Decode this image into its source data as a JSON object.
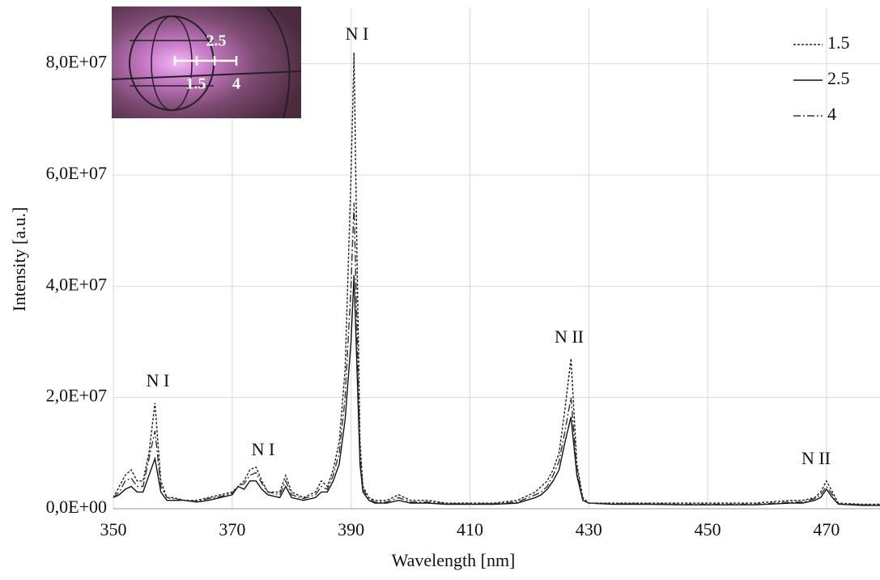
{
  "chart_data": {
    "type": "line",
    "x_label": "Wavelength [nm]",
    "y_label": "Intensity [a.u.]",
    "x": [
      350,
      351,
      352,
      353,
      354,
      355,
      356,
      357,
      358,
      359,
      360,
      362,
      364,
      366,
      368,
      370,
      371,
      372,
      373,
      374,
      375,
      376,
      378,
      379,
      380,
      382,
      384,
      385,
      386,
      387,
      388,
      389,
      390,
      390.5,
      391,
      391.5,
      392,
      393,
      394,
      396,
      398,
      400,
      403,
      406,
      410,
      414,
      418,
      421,
      422,
      423,
      424,
      425,
      426,
      427,
      428,
      429,
      430,
      434,
      440,
      446,
      452,
      458,
      464,
      466,
      468,
      469,
      470,
      471,
      472,
      476,
      479
    ],
    "series": [
      {
        "name": "1.5",
        "color": "#222222",
        "dash": "dotted",
        "values": [
          2000000.0,
          4000000.0,
          6000000.0,
          7000000.0,
          5000000.0,
          5000000.0,
          10000000.0,
          19000000.0,
          5000000.0,
          2000000.0,
          2000000.0,
          1500000.0,
          1500000.0,
          2000000.0,
          2500000.0,
          3000000.0,
          4000000.0,
          5000000.0,
          7000000.0,
          7500000.0,
          5000000.0,
          3000000.0,
          3000000.0,
          6000000.0,
          3000000.0,
          2000000.0,
          3000000.0,
          5000000.0,
          4000000.0,
          7000000.0,
          12000000.0,
          25000000.0,
          60000000.0,
          82000000.0,
          45000000.0,
          12000000.0,
          4000000.0,
          2000000.0,
          1500000.0,
          1500000.0,
          2500000.0,
          1500000.0,
          1500000.0,
          1000000.0,
          1000000.0,
          1000000.0,
          1500000.0,
          3000000.0,
          4000000.0,
          5000000.0,
          7000000.0,
          10000000.0,
          18000000.0,
          27000000.0,
          8000000.0,
          2000000.0,
          1000000.0,
          1000000.0,
          1000000.0,
          1000000.0,
          1000000.0,
          1000000.0,
          1500000.0,
          1500000.0,
          2000000.0,
          3000000.0,
          5000000.0,
          3000000.0,
          1000000.0,
          800000.0,
          800000.0
        ]
      },
      {
        "name": "2.5",
        "color": "#111111",
        "dash": "solid",
        "values": [
          2000000.0,
          2500000.0,
          3500000.0,
          4000000.0,
          3000000.0,
          3000000.0,
          6000000.0,
          9000000.0,
          3000000.0,
          1500000.0,
          1500000.0,
          1500000.0,
          1200000.0,
          1500000.0,
          2000000.0,
          2500000.0,
          4000000.0,
          3500000.0,
          5000000.0,
          5000000.0,
          3500000.0,
          2500000.0,
          2000000.0,
          4000000.0,
          2000000.0,
          1500000.0,
          2000000.0,
          3000000.0,
          3000000.0,
          5000000.0,
          8000000.0,
          16000000.0,
          30000000.0,
          42000000.0,
          25000000.0,
          8000000.0,
          3000000.0,
          1500000.0,
          1000000.0,
          1000000.0,
          1500000.0,
          1000000.0,
          1000000.0,
          800000.0,
          800000.0,
          800000.0,
          1000000.0,
          2000000.0,
          2500000.0,
          3500000.0,
          5000000.0,
          7000000.0,
          12000000.0,
          16500000.0,
          6000000.0,
          1500000.0,
          1000000.0,
          800000.0,
          800000.0,
          700000.0,
          700000.0,
          700000.0,
          1000000.0,
          1000000.0,
          1500000.0,
          2000000.0,
          3500000.0,
          2000000.0,
          800000.0,
          600000.0,
          600000.0
        ]
      },
      {
        "name": "4",
        "color": "#333333",
        "dash": "dashdot",
        "values": [
          2000000.0,
          3000000.0,
          5000000.0,
          5500000.0,
          4000000.0,
          4000000.0,
          9000000.0,
          14000000.0,
          4000000.0,
          2000000.0,
          1800000.0,
          1500000.0,
          1300000.0,
          1800000.0,
          2200000.0,
          2800000.0,
          4000000.0,
          4500000.0,
          6000000.0,
          6500000.0,
          4500000.0,
          3000000.0,
          2500000.0,
          5000000.0,
          2500000.0,
          1800000.0,
          2500000.0,
          4000000.0,
          3500000.0,
          6000000.0,
          10000000.0,
          20000000.0,
          40000000.0,
          55000000.0,
          32000000.0,
          10000000.0,
          3500000.0,
          1800000.0,
          1200000.0,
          1200000.0,
          2000000.0,
          1200000.0,
          1200000.0,
          900000.0,
          900000.0,
          900000.0,
          1200000.0,
          2500000.0,
          3000000.0,
          4000000.0,
          6000000.0,
          8500000.0,
          14000000.0,
          20000000.0,
          7000000.0,
          1800000.0,
          1000000.0,
          900000.0,
          900000.0,
          800000.0,
          800000.0,
          800000.0,
          1200000.0,
          1200000.0,
          1800000.0,
          2500000.0,
          4000000.0,
          2500000.0,
          900000.0,
          700000.0,
          700000.0
        ]
      }
    ],
    "xlim": [
      350,
      479
    ],
    "ylim": [
      0,
      90000000.0
    ],
    "xticks": [
      350,
      370,
      390,
      410,
      430,
      450,
      470
    ],
    "yticks": [
      {
        "value": 0,
        "label": "0,0E+00"
      },
      {
        "value": 20000000.0,
        "label": "2,0E+07"
      },
      {
        "value": 40000000.0,
        "label": "4,0E+07"
      },
      {
        "value": 60000000.0,
        "label": "6,0E+07"
      },
      {
        "value": 80000000.0,
        "label": "8,0E+07"
      }
    ],
    "grid": true,
    "legend": "top-right",
    "annotations": [
      "N I",
      "N I",
      "N I",
      "N II",
      "N II"
    ]
  },
  "inset": {
    "labels": [
      "2.5",
      "1.5",
      "4"
    ]
  }
}
